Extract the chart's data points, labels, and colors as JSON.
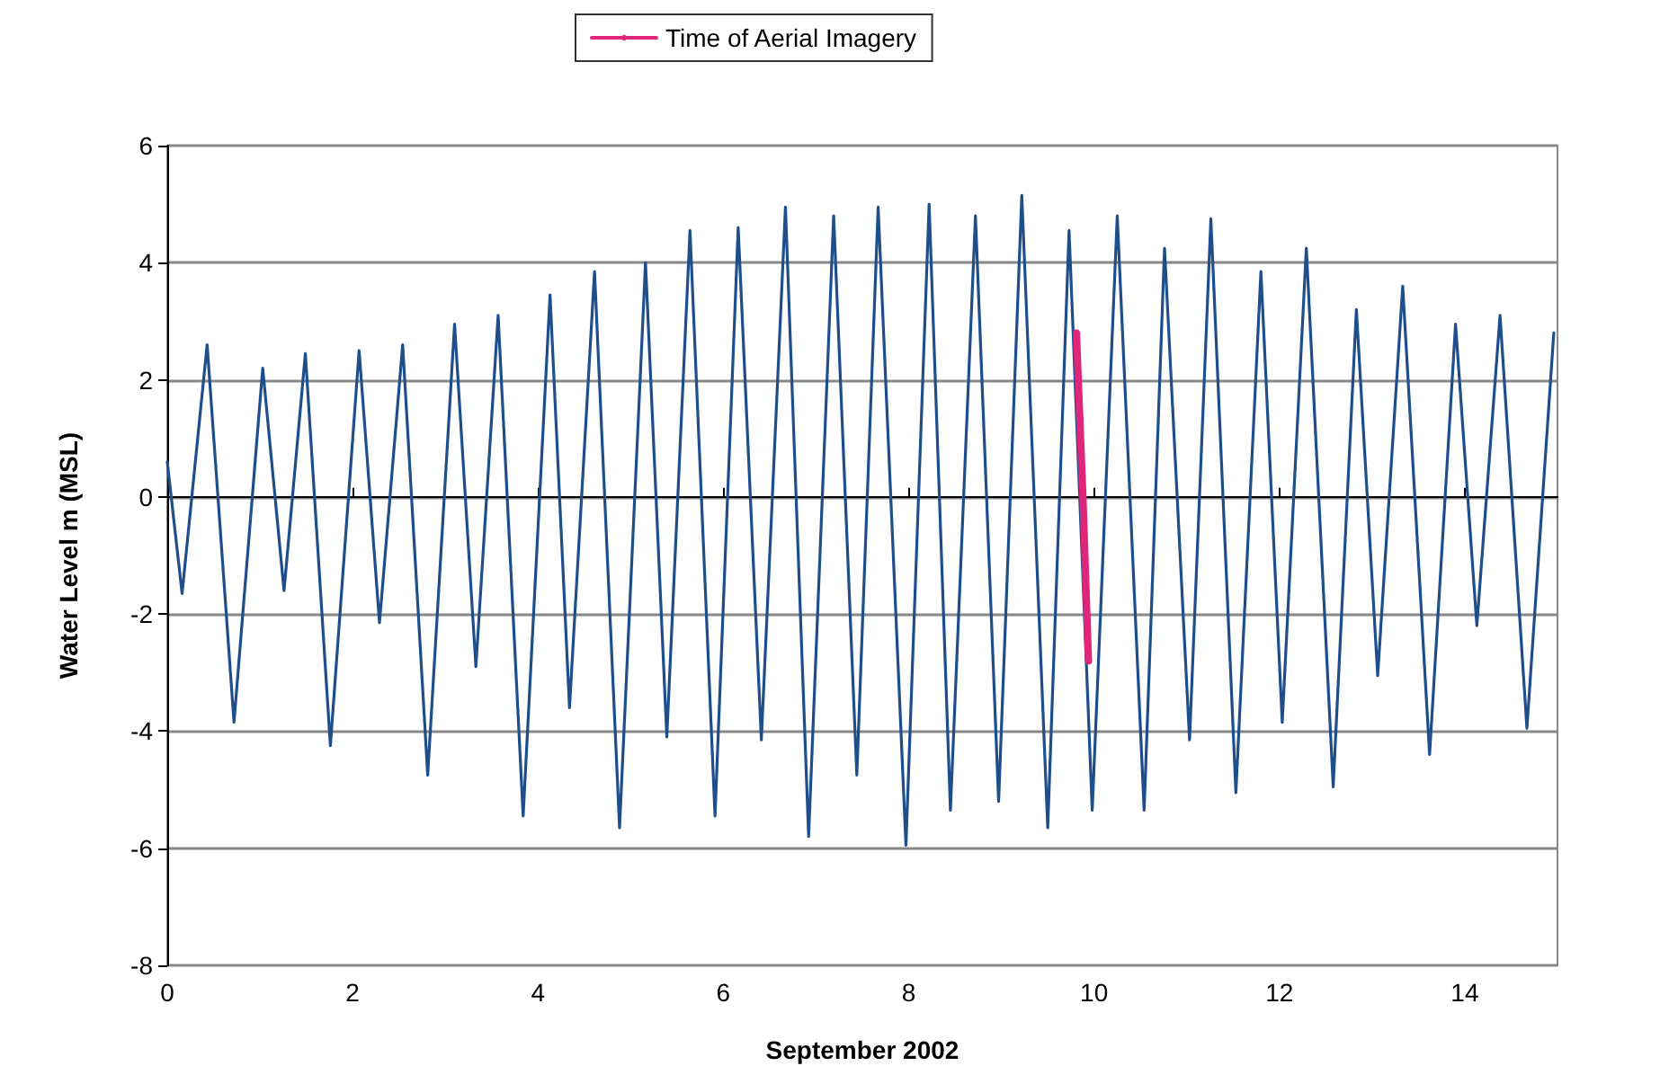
{
  "chart_data": {
    "type": "line",
    "xlabel": "September 2002",
    "ylabel": "Water Level m (MSL)",
    "xlim": [
      0,
      15
    ],
    "xticks": [
      0,
      2,
      4,
      6,
      8,
      10,
      12,
      14
    ],
    "ylim": [
      -8,
      6
    ],
    "yticks": [
      -8,
      -6,
      -4,
      -2,
      0,
      2,
      4,
      6
    ],
    "grid": "y",
    "legend": "top",
    "marker": "none",
    "line_style": "solid",
    "series": [
      {
        "color": "#1f4e8c",
        "x": [
          0,
          0.16,
          0.43,
          0.72,
          1.03,
          1.26,
          1.49,
          1.76,
          2.07,
          2.29,
          2.54,
          2.81,
          3.1,
          3.33,
          3.57,
          3.84,
          4.13,
          4.34,
          4.61,
          4.88,
          5.16,
          5.39,
          5.64,
          5.91,
          6.16,
          6.41,
          6.67,
          6.92,
          7.19,
          7.44,
          7.67,
          7.97,
          8.22,
          8.45,
          8.72,
          8.97,
          9.22,
          9.5,
          9.73,
          9.98,
          10.25,
          10.54,
          10.76,
          11.03,
          11.26,
          11.53,
          11.8,
          12.03,
          12.29,
          12.58,
          12.83,
          13.06,
          13.33,
          13.62,
          13.9,
          14.13,
          14.38,
          14.67,
          14.96
        ],
        "values": [
          0.6,
          -1.65,
          2.6,
          -3.85,
          2.2,
          -1.6,
          2.45,
          -4.25,
          2.5,
          -2.15,
          2.6,
          -4.75,
          2.95,
          -2.9,
          3.1,
          -5.45,
          3.45,
          -3.6,
          3.85,
          -5.65,
          4.0,
          -4.1,
          4.55,
          -5.45,
          4.6,
          -4.15,
          4.95,
          -5.8,
          4.8,
          -4.75,
          4.95,
          -5.95,
          5.0,
          -5.35,
          4.8,
          -5.2,
          5.15,
          -5.65,
          4.55,
          -5.35,
          4.8,
          -5.35,
          4.25,
          -4.15,
          4.75,
          -5.05,
          3.85,
          -3.85,
          4.25,
          -4.95,
          3.2,
          -3.05,
          3.6,
          -4.4,
          2.95,
          -2.2,
          3.1,
          -3.95,
          2.8
        ]
      },
      {
        "name": "Time of Aerial Imagery",
        "color": "#e0267a",
        "x": [
          9.81,
          9.88,
          9.94
        ],
        "values": [
          2.8,
          0,
          -2.8
        ]
      }
    ]
  }
}
